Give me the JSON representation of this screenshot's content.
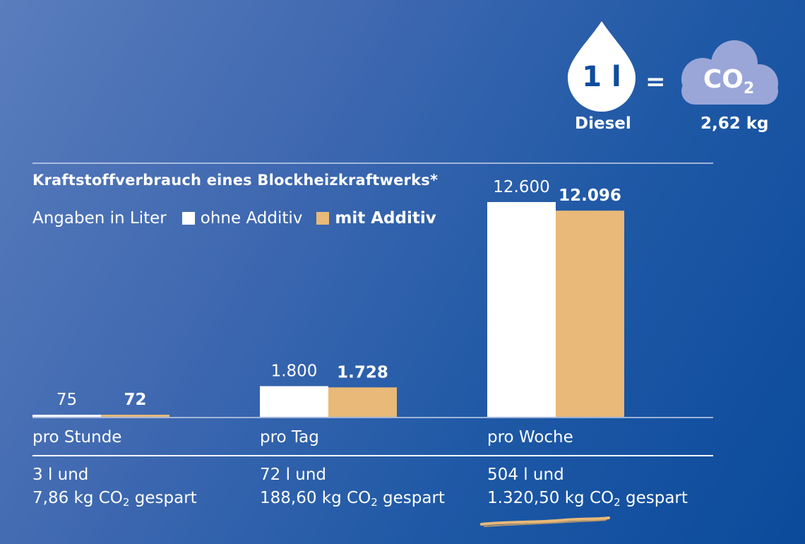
{
  "header": {
    "drop_label": "1 l",
    "drop_caption": "Diesel",
    "equals": "=",
    "cloud_label": "CO",
    "cloud_sub": "2",
    "cloud_caption": "2,62 kg"
  },
  "colors": {
    "ohne": "#ffffff",
    "mit": "#e8b978",
    "cloud": "#9aa6d8",
    "rule": "#c8d2ea",
    "brush": "#e8b978"
  },
  "chart_data": {
    "type": "bar",
    "title": "Kraftstoffverbrauch eines Blockheizkraftwerks*",
    "unit_label": "Angaben in Liter",
    "categories": [
      "pro Stunde",
      "pro Tag",
      "pro Woche"
    ],
    "series": [
      {
        "name": "ohne Additiv",
        "values": [
          75,
          1800,
          12600
        ],
        "labels": [
          "75",
          "1.800",
          "12.600"
        ]
      },
      {
        "name": "mit Additiv",
        "values": [
          72,
          1728,
          12096
        ],
        "labels": [
          "72",
          "1.728",
          "12.096"
        ]
      }
    ],
    "ylim": [
      0,
      12600
    ],
    "savings": [
      {
        "line1": "3 l und",
        "line2_pre": "7,86 kg CO",
        "line2_sub": "2",
        "line2_post": " gespart"
      },
      {
        "line1": "72 l und",
        "line2_pre": "188,60 kg CO",
        "line2_sub": "2",
        "line2_post": " gespart"
      },
      {
        "line1": "504 l und",
        "line2_pre": "1.320,50 kg CO",
        "line2_sub": "2",
        "line2_post": " gespart"
      }
    ],
    "grid": false,
    "legend_placement": "top-left"
  }
}
